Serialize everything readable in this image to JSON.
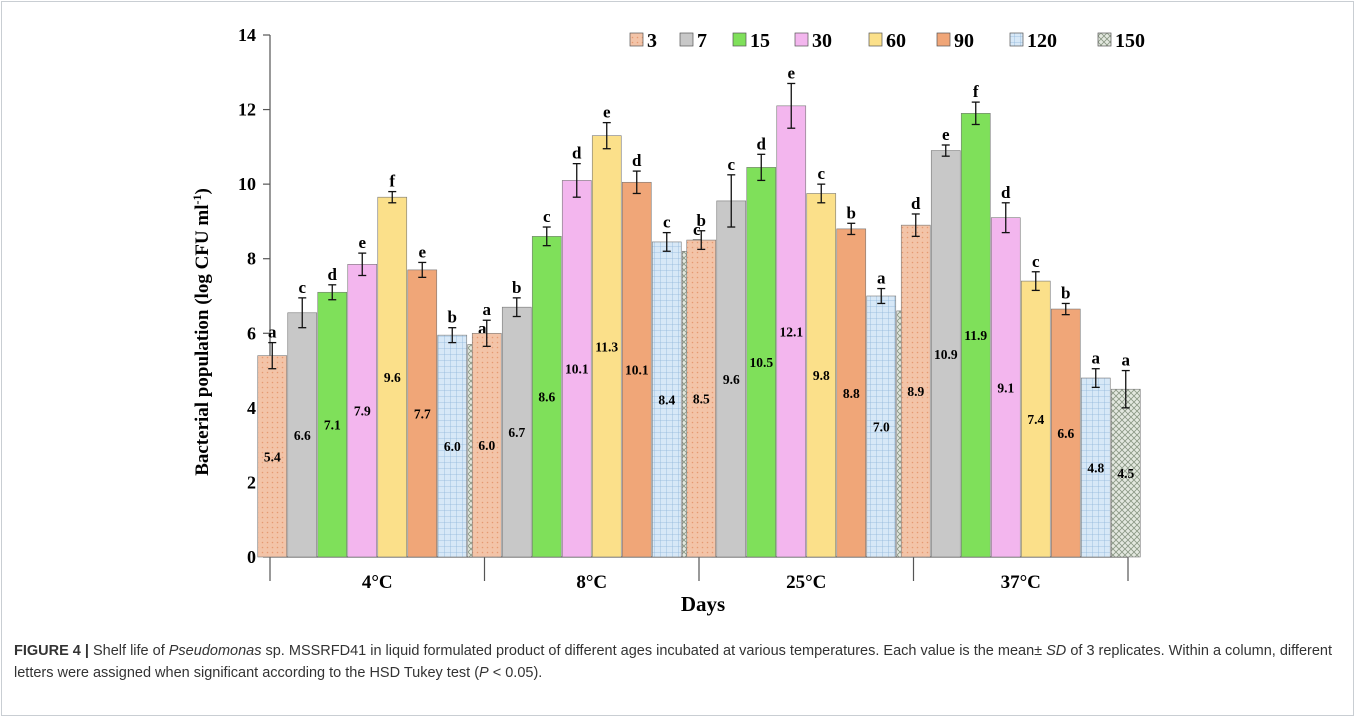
{
  "chart_data": {
    "type": "bar",
    "ylabel": "Bacterial population (log CFU ml",
    "ylabel_sup": "-1",
    "ylabel_close": ")",
    "xlabel": "Days",
    "ylim": [
      0,
      14
    ],
    "yticks": [
      0,
      2,
      4,
      6,
      8,
      10,
      12,
      14
    ],
    "grid": false,
    "legend_position": "top-right",
    "categories": [
      "4°C",
      "8°C",
      "25°C",
      "37°C"
    ],
    "series": [
      {
        "name": "3",
        "color": "#f3c4a8",
        "pattern": "dots",
        "values": [
          5.4,
          6.0,
          8.5,
          8.9
        ],
        "labels": [
          "5.4",
          "6.0",
          "8.5",
          "8.9"
        ],
        "errors": [
          0.35,
          0.35,
          0.25,
          0.3
        ],
        "letters": [
          "a",
          "a",
          "b",
          "d"
        ]
      },
      {
        "name": "7",
        "color": "#c8c8c8",
        "pattern": "none",
        "values": [
          6.55,
          6.7,
          9.55,
          10.9
        ],
        "labels": [
          "6.6",
          "6.7",
          "9.6",
          "10.9"
        ],
        "errors": [
          0.4,
          0.25,
          0.7,
          0.15
        ],
        "letters": [
          "c",
          "b",
          "c",
          "e"
        ]
      },
      {
        "name": "15",
        "color": "#7fe05a",
        "pattern": "none",
        "values": [
          7.1,
          8.6,
          10.45,
          11.9
        ],
        "labels": [
          "7.1",
          "8.6",
          "10.5",
          "11.9"
        ],
        "errors": [
          0.2,
          0.25,
          0.35,
          0.3
        ],
        "letters": [
          "d",
          "c",
          "d",
          "f"
        ]
      },
      {
        "name": "30",
        "color": "#f3b6ee",
        "pattern": "none",
        "values": [
          7.85,
          10.1,
          12.1,
          9.1
        ],
        "labels": [
          "7.9",
          "10.1",
          "12.1",
          "9.1"
        ],
        "errors": [
          0.3,
          0.45,
          0.6,
          0.4
        ],
        "letters": [
          "e",
          "d",
          "e",
          "d"
        ]
      },
      {
        "name": "60",
        "color": "#fbe08a",
        "pattern": "none",
        "values": [
          9.65,
          11.3,
          9.75,
          7.4
        ],
        "labels": [
          "9.6",
          "11.3",
          "9.8",
          "7.4"
        ],
        "errors": [
          0.15,
          0.35,
          0.25,
          0.25
        ],
        "letters": [
          "f",
          "e",
          "c",
          "c"
        ]
      },
      {
        "name": "90",
        "color": "#f0a678",
        "pattern": "none",
        "values": [
          7.7,
          10.05,
          8.8,
          6.65
        ],
        "labels": [
          "7.7",
          "10.1",
          "8.8",
          "6.6"
        ],
        "errors": [
          0.2,
          0.3,
          0.15,
          0.15
        ],
        "letters": [
          "e",
          "d",
          "b",
          "b"
        ]
      },
      {
        "name": "120",
        "color": "#cfe3f5",
        "pattern": "grid",
        "values": [
          5.95,
          8.45,
          7.0,
          4.8
        ],
        "labels": [
          "6.0",
          "8.4",
          "7.0",
          "4.8"
        ],
        "errors": [
          0.2,
          0.25,
          0.2,
          0.25
        ],
        "letters": [
          "b",
          "c",
          "a",
          "a"
        ]
      },
      {
        "name": "150",
        "color": "#d6ddd2",
        "pattern": "cross",
        "values": [
          5.7,
          8.2,
          6.6,
          4.5
        ],
        "labels": [
          "5.7",
          "8.2",
          "6.6",
          "4.5"
        ],
        "errors": [
          0.15,
          0.3,
          0.3,
          0.5
        ],
        "letters": [
          "a",
          "c",
          "a",
          "a"
        ]
      }
    ]
  },
  "caption": {
    "figure_label": "FIGURE 4 |",
    "text_before_italic": " Shelf life of ",
    "italic": "Pseudomonas",
    "text_mid": " sp. MSSRFD41 in liquid formulated product of different ages incubated at various temperatures. Each value is the mean± ",
    "italic_sd": "SD",
    "text_after": " of 3 replicates. Within a column, different letters were assigned when significant according to the HSD Tukey test (",
    "italic_p": "P",
    "text_end": " < 0.05)."
  }
}
